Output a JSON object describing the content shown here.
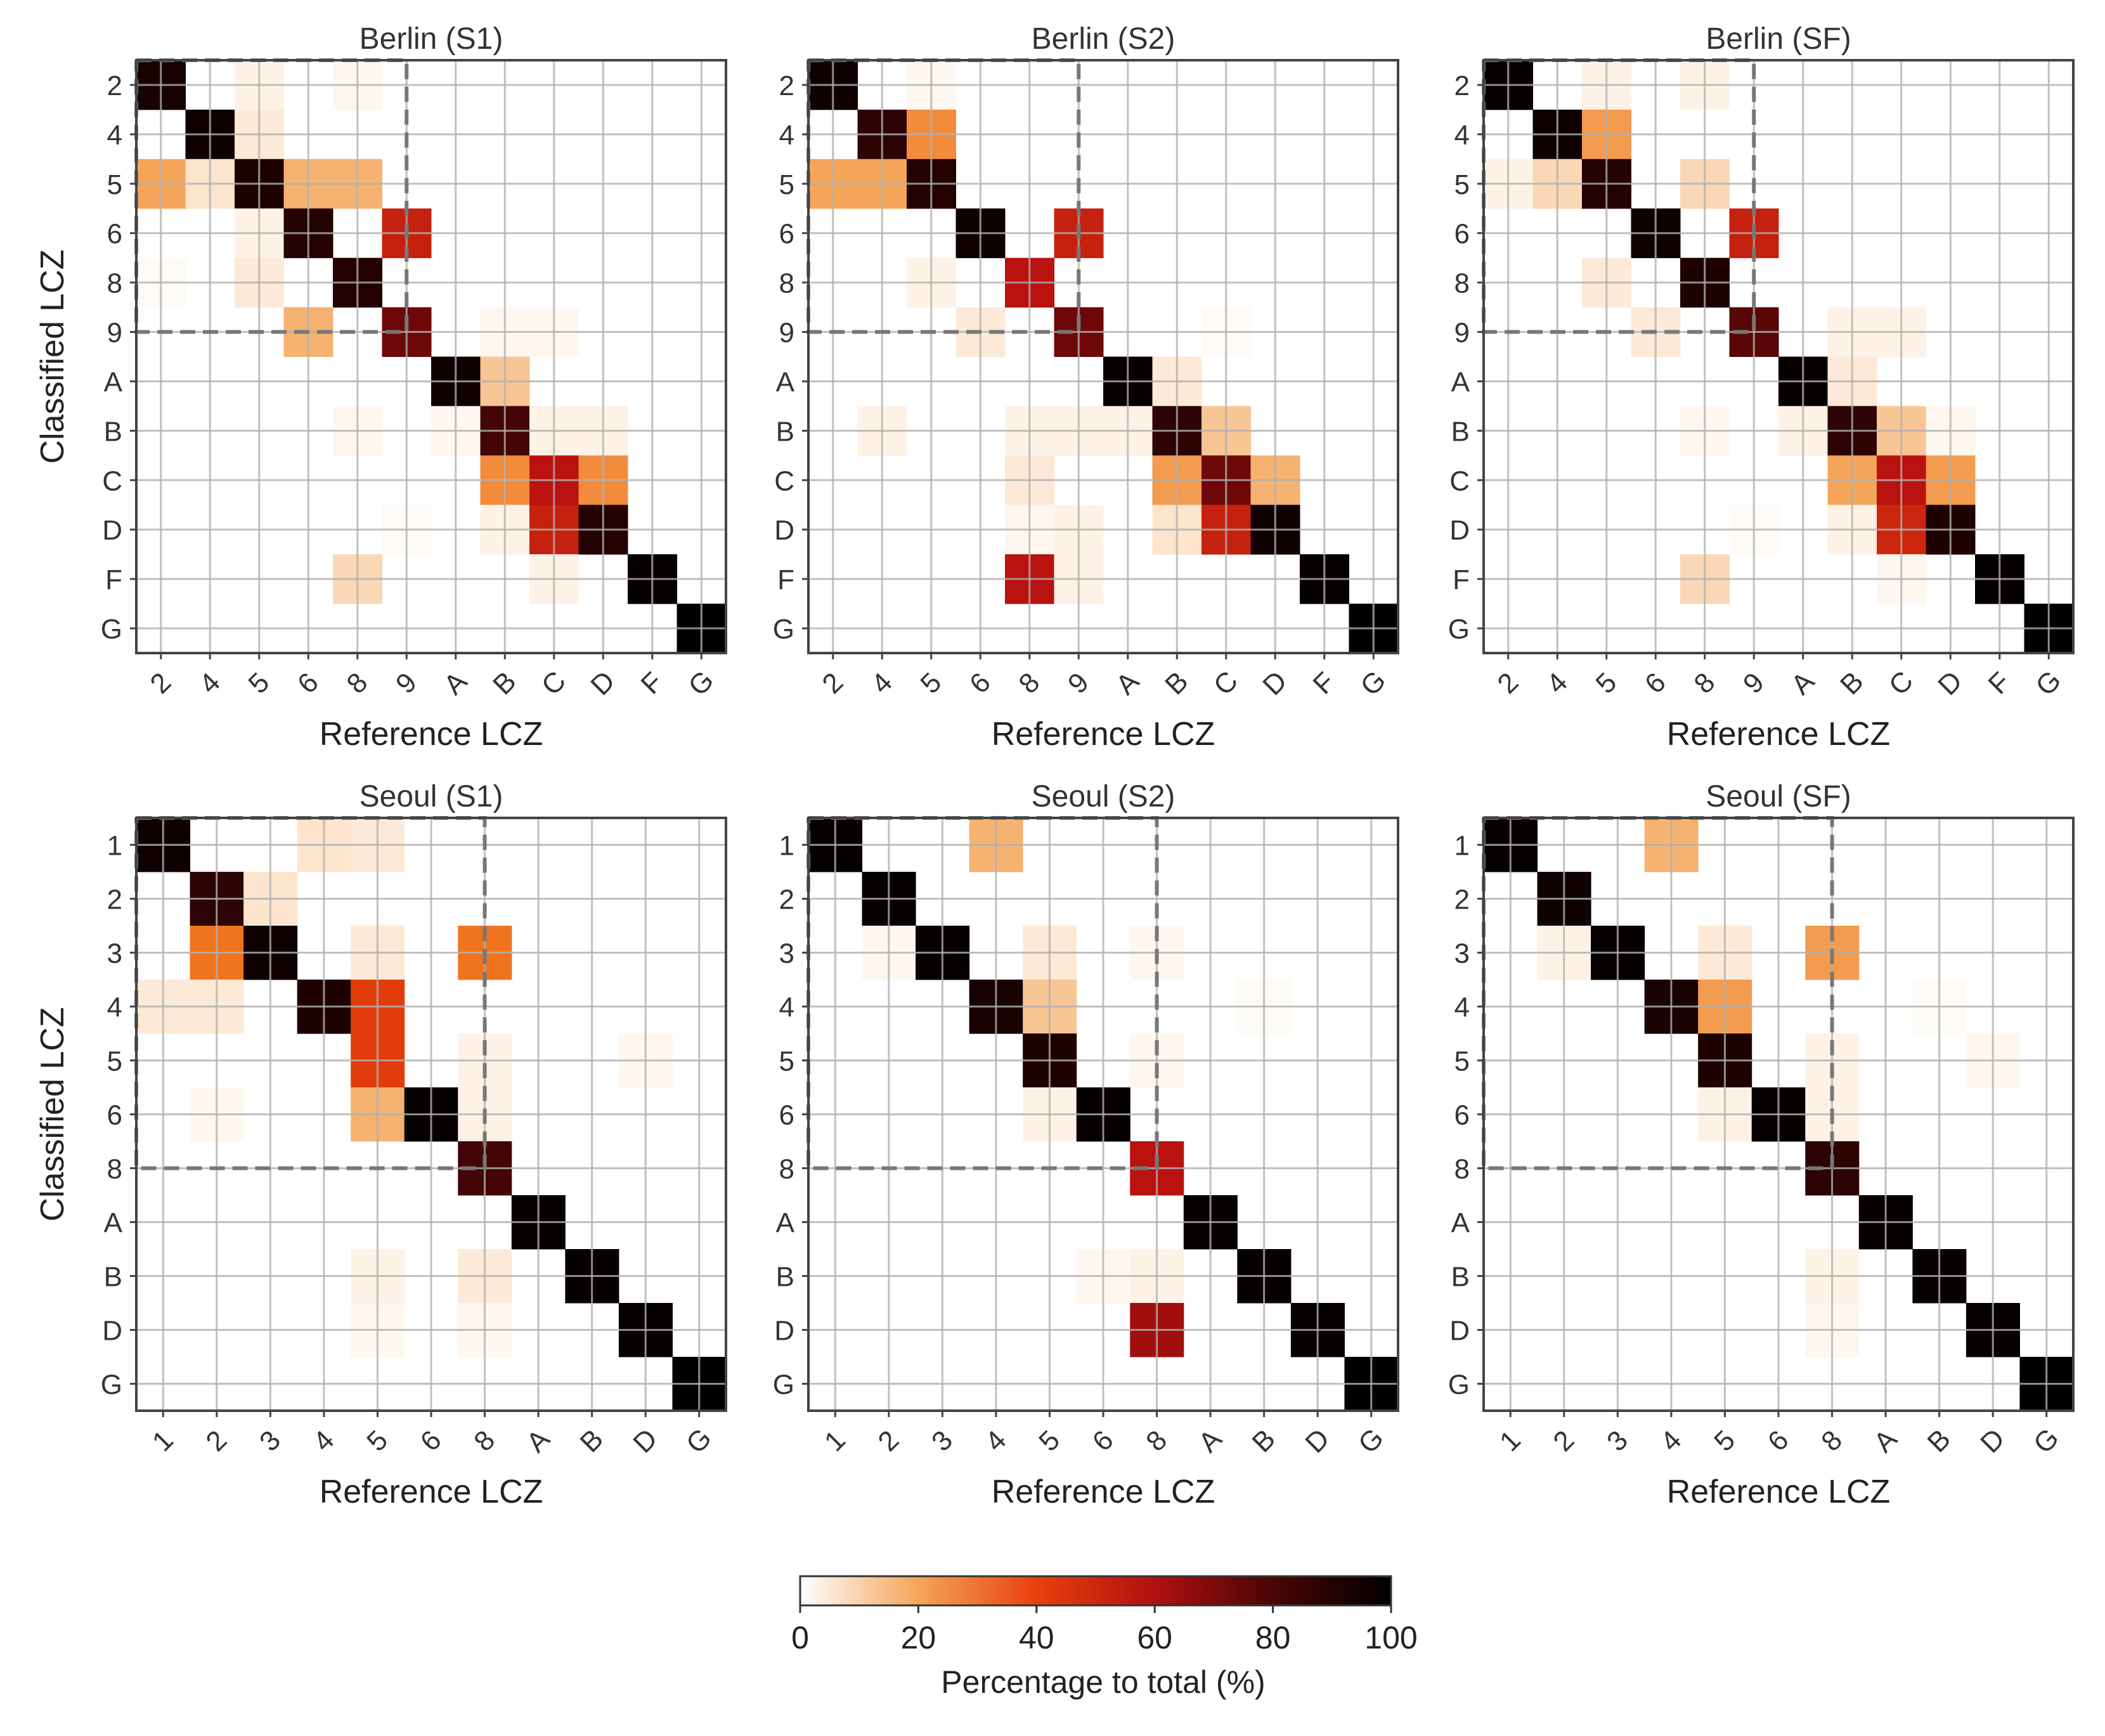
{
  "chart_data": [
    {
      "type": "heatmap",
      "title": "Berlin (S1)",
      "xlabel": "Reference LCZ",
      "ylabel": "Classified LCZ",
      "categories": [
        "2",
        "4",
        "5",
        "6",
        "8",
        "9",
        "A",
        "B",
        "C",
        "D",
        "F",
        "G"
      ],
      "urban_classes": 6,
      "cells": [
        [
          0,
          0,
          92
        ],
        [
          0,
          2,
          5
        ],
        [
          0,
          4,
          3
        ],
        [
          1,
          1,
          95
        ],
        [
          1,
          2,
          8
        ],
        [
          2,
          0,
          20
        ],
        [
          2,
          1,
          10
        ],
        [
          2,
          2,
          90
        ],
        [
          2,
          3,
          18
        ],
        [
          2,
          4,
          18
        ],
        [
          3,
          2,
          5
        ],
        [
          3,
          3,
          88
        ],
        [
          3,
          5,
          50
        ],
        [
          4,
          0,
          2
        ],
        [
          4,
          2,
          8
        ],
        [
          4,
          4,
          88
        ],
        [
          5,
          3,
          18
        ],
        [
          5,
          5,
          70
        ],
        [
          5,
          7,
          3
        ],
        [
          5,
          8,
          3
        ],
        [
          6,
          6,
          95
        ],
        [
          6,
          7,
          15
        ],
        [
          7,
          4,
          3
        ],
        [
          7,
          6,
          3
        ],
        [
          7,
          7,
          80
        ],
        [
          7,
          8,
          5
        ],
        [
          7,
          9,
          5
        ],
        [
          8,
          7,
          25
        ],
        [
          8,
          8,
          55
        ],
        [
          8,
          9,
          25
        ],
        [
          9,
          5,
          2
        ],
        [
          9,
          7,
          5
        ],
        [
          9,
          8,
          50
        ],
        [
          9,
          9,
          88
        ],
        [
          10,
          4,
          12
        ],
        [
          10,
          8,
          5
        ],
        [
          10,
          10,
          98
        ],
        [
          11,
          11,
          100
        ]
      ]
    },
    {
      "type": "heatmap",
      "title": "Berlin (S2)",
      "xlabel": "Reference LCZ",
      "ylabel": "",
      "categories": [
        "2",
        "4",
        "5",
        "6",
        "8",
        "9",
        "A",
        "B",
        "C",
        "D",
        "F",
        "G"
      ],
      "urban_classes": 6,
      "cells": [
        [
          0,
          0,
          95
        ],
        [
          0,
          2,
          3
        ],
        [
          1,
          1,
          85
        ],
        [
          1,
          2,
          25
        ],
        [
          2,
          0,
          20
        ],
        [
          2,
          1,
          20
        ],
        [
          2,
          2,
          88
        ],
        [
          3,
          3,
          95
        ],
        [
          3,
          5,
          50
        ],
        [
          4,
          2,
          5
        ],
        [
          4,
          4,
          55
        ],
        [
          5,
          3,
          8
        ],
        [
          5,
          5,
          70
        ],
        [
          5,
          8,
          2
        ],
        [
          6,
          6,
          98
        ],
        [
          6,
          7,
          8
        ],
        [
          7,
          1,
          5
        ],
        [
          7,
          4,
          5
        ],
        [
          7,
          5,
          5
        ],
        [
          7,
          6,
          5
        ],
        [
          7,
          7,
          85
        ],
        [
          7,
          8,
          15
        ],
        [
          8,
          4,
          8
        ],
        [
          8,
          7,
          22
        ],
        [
          8,
          8,
          70
        ],
        [
          8,
          9,
          18
        ],
        [
          9,
          4,
          3
        ],
        [
          9,
          5,
          5
        ],
        [
          9,
          7,
          10
        ],
        [
          9,
          8,
          50
        ],
        [
          9,
          9,
          95
        ],
        [
          10,
          4,
          55
        ],
        [
          10,
          5,
          5
        ],
        [
          10,
          10,
          98
        ],
        [
          11,
          11,
          100
        ]
      ]
    },
    {
      "type": "heatmap",
      "title": "Berlin (SF)",
      "xlabel": "Reference LCZ",
      "ylabel": "",
      "categories": [
        "2",
        "4",
        "5",
        "6",
        "8",
        "9",
        "A",
        "B",
        "C",
        "D",
        "F",
        "G"
      ],
      "urban_classes": 6,
      "cells": [
        [
          0,
          0,
          98
        ],
        [
          0,
          2,
          5
        ],
        [
          0,
          4,
          5
        ],
        [
          1,
          1,
          95
        ],
        [
          1,
          2,
          22
        ],
        [
          2,
          0,
          5
        ],
        [
          2,
          1,
          12
        ],
        [
          2,
          2,
          88
        ],
        [
          2,
          4,
          12
        ],
        [
          3,
          3,
          95
        ],
        [
          3,
          5,
          50
        ],
        [
          4,
          2,
          8
        ],
        [
          4,
          4,
          90
        ],
        [
          5,
          3,
          8
        ],
        [
          5,
          5,
          75
        ],
        [
          5,
          7,
          5
        ],
        [
          5,
          8,
          5
        ],
        [
          6,
          6,
          98
        ],
        [
          6,
          7,
          8
        ],
        [
          7,
          4,
          3
        ],
        [
          7,
          6,
          5
        ],
        [
          7,
          7,
          85
        ],
        [
          7,
          8,
          15
        ],
        [
          7,
          9,
          3
        ],
        [
          8,
          7,
          20
        ],
        [
          8,
          8,
          55
        ],
        [
          8,
          9,
          22
        ],
        [
          9,
          5,
          2
        ],
        [
          9,
          7,
          5
        ],
        [
          9,
          8,
          48
        ],
        [
          9,
          9,
          90
        ],
        [
          10,
          4,
          12
        ],
        [
          10,
          8,
          3
        ],
        [
          10,
          10,
          98
        ],
        [
          11,
          11,
          100
        ]
      ]
    },
    {
      "type": "heatmap",
      "title": "Seoul (S1)",
      "xlabel": "Reference LCZ",
      "ylabel": "Classified LCZ",
      "categories": [
        "1",
        "2",
        "3",
        "4",
        "5",
        "6",
        "8",
        "A",
        "B",
        "D",
        "G"
      ],
      "urban_classes": 7,
      "cells": [
        [
          0,
          0,
          95
        ],
        [
          0,
          3,
          10
        ],
        [
          0,
          4,
          8
        ],
        [
          1,
          1,
          85
        ],
        [
          1,
          2,
          10
        ],
        [
          2,
          1,
          30
        ],
        [
          2,
          2,
          95
        ],
        [
          2,
          4,
          8
        ],
        [
          2,
          6,
          30
        ],
        [
          3,
          0,
          8
        ],
        [
          3,
          1,
          8
        ],
        [
          3,
          3,
          90
        ],
        [
          3,
          4,
          40
        ],
        [
          4,
          4,
          40
        ],
        [
          4,
          6,
          5
        ],
        [
          4,
          9,
          3
        ],
        [
          5,
          1,
          3
        ],
        [
          5,
          4,
          18
        ],
        [
          5,
          5,
          98
        ],
        [
          5,
          6,
          5
        ],
        [
          6,
          6,
          80
        ],
        [
          7,
          7,
          98
        ],
        [
          8,
          4,
          5
        ],
        [
          8,
          6,
          8
        ],
        [
          8,
          8,
          98
        ],
        [
          9,
          4,
          3
        ],
        [
          9,
          6,
          3
        ],
        [
          9,
          9,
          98
        ],
        [
          10,
          10,
          100
        ]
      ]
    },
    {
      "type": "heatmap",
      "title": "Seoul (S2)",
      "xlabel": "Reference LCZ",
      "ylabel": "",
      "categories": [
        "1",
        "2",
        "3",
        "4",
        "5",
        "6",
        "8",
        "A",
        "B",
        "D",
        "G"
      ],
      "urban_classes": 7,
      "cells": [
        [
          0,
          0,
          98
        ],
        [
          0,
          3,
          18
        ],
        [
          1,
          1,
          98
        ],
        [
          2,
          1,
          3
        ],
        [
          2,
          2,
          98
        ],
        [
          2,
          4,
          8
        ],
        [
          2,
          6,
          3
        ],
        [
          3,
          3,
          92
        ],
        [
          3,
          4,
          15
        ],
        [
          3,
          8,
          2
        ],
        [
          4,
          4,
          90
        ],
        [
          4,
          6,
          3
        ],
        [
          5,
          4,
          5
        ],
        [
          5,
          5,
          98
        ],
        [
          6,
          6,
          55
        ],
        [
          7,
          7,
          98
        ],
        [
          8,
          5,
          3
        ],
        [
          8,
          6,
          5
        ],
        [
          8,
          8,
          98
        ],
        [
          9,
          6,
          60
        ],
        [
          9,
          9,
          98
        ],
        [
          10,
          10,
          100
        ]
      ]
    },
    {
      "type": "heatmap",
      "title": "Seoul (SF)",
      "xlabel": "Reference LCZ",
      "ylabel": "",
      "categories": [
        "1",
        "2",
        "3",
        "4",
        "5",
        "6",
        "8",
        "A",
        "B",
        "D",
        "G"
      ],
      "urban_classes": 7,
      "cells": [
        [
          0,
          0,
          98
        ],
        [
          0,
          3,
          18
        ],
        [
          1,
          1,
          95
        ],
        [
          2,
          1,
          5
        ],
        [
          2,
          2,
          98
        ],
        [
          2,
          4,
          8
        ],
        [
          2,
          6,
          22
        ],
        [
          3,
          3,
          92
        ],
        [
          3,
          4,
          22
        ],
        [
          3,
          8,
          2
        ],
        [
          4,
          4,
          90
        ],
        [
          4,
          6,
          5
        ],
        [
          4,
          9,
          3
        ],
        [
          5,
          4,
          5
        ],
        [
          5,
          5,
          98
        ],
        [
          5,
          6,
          5
        ],
        [
          6,
          6,
          85
        ],
        [
          7,
          7,
          98
        ],
        [
          8,
          6,
          5
        ],
        [
          8,
          8,
          98
        ],
        [
          9,
          6,
          3
        ],
        [
          9,
          9,
          98
        ],
        [
          10,
          10,
          100
        ]
      ]
    }
  ],
  "colorbar": {
    "label": "Percentage to total (%)",
    "ticks": [
      "0",
      "20",
      "40",
      "60",
      "80",
      "100"
    ],
    "range": [
      0,
      100
    ],
    "colormap": "gist_heat_r"
  }
}
